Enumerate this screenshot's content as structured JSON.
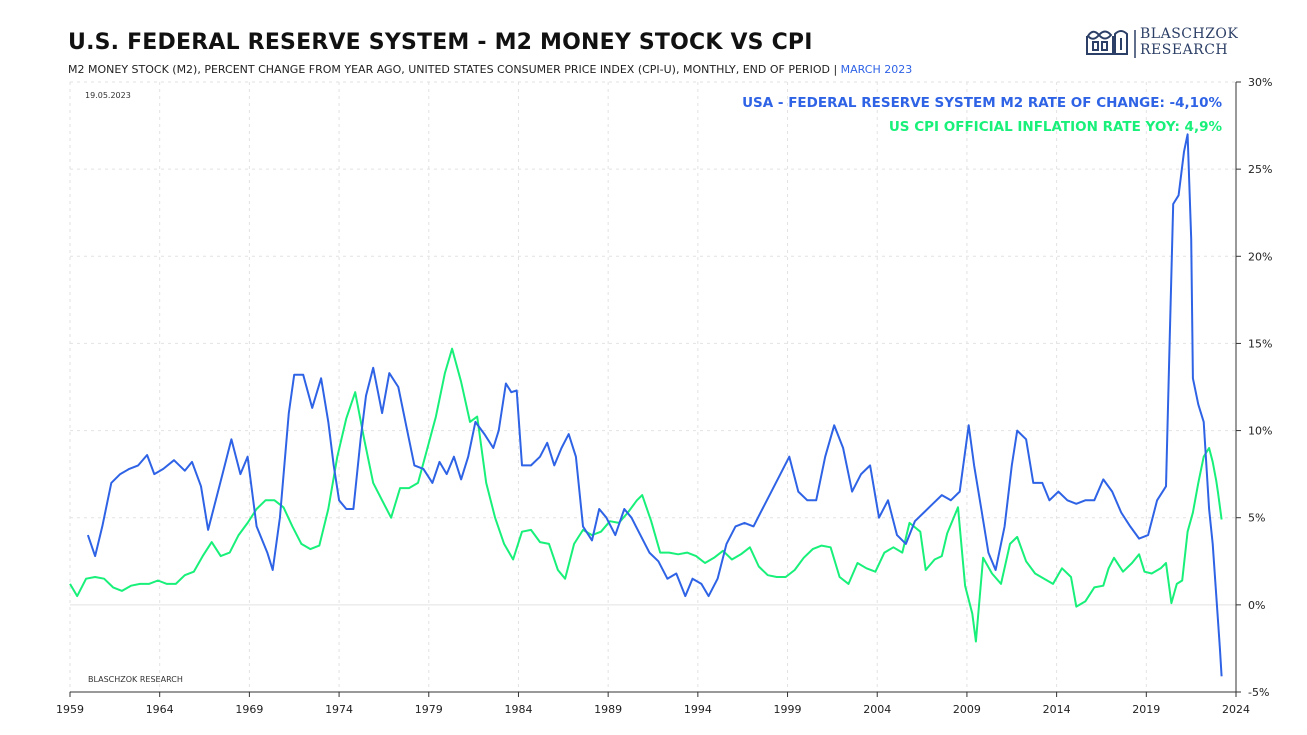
{
  "header": {
    "title": "U.S. FEDERAL RESERVE SYSTEM - M2 MONEY STOCK VS CPI",
    "subtitle": "M2 MONEY STOCK (M2), PERCENT CHANGE FROM YEAR AGO, UNITED STATES CONSUMER PRICE INDEX (CPI-U), MONTHLY, END OF PERIOD |",
    "subtitle_highlight": "MARCH 2023"
  },
  "logo": {
    "line1": "BLASCHZOK",
    "line2": "RESEARCH"
  },
  "date_stamp": "19.05.2023",
  "watermark": "BLASCHZOK  RESEARCH",
  "colors": {
    "m2": "#2f63e6",
    "cpi": "#18f07a",
    "grid": "#e2e2e2",
    "axis": "#333333"
  },
  "chart_data": {
    "type": "line",
    "title": "U.S. FEDERAL RESERVE SYSTEM - M2 MONEY STOCK VS CPI",
    "xlabel": "",
    "ylabel": "",
    "xlim": [
      1959,
      2024
    ],
    "ylim": [
      -5,
      30
    ],
    "x_ticks": [
      "1959",
      "1964",
      "1969",
      "1974",
      "1979",
      "1984",
      "1989",
      "1994",
      "1999",
      "2004",
      "2009",
      "2014",
      "2019",
      "2024"
    ],
    "y_ticks": [
      "30%",
      "25%",
      "20%",
      "15%",
      "10%",
      "5%",
      "0%",
      "-5%"
    ],
    "y_axis_side": "right",
    "grid": true,
    "legend_placement": "top-right",
    "series": [
      {
        "name": "USA - FEDERAL RESERVE SYSTEM M2 RATE OF CHANGE: -4,10%",
        "color": "#2f63e6",
        "points": [
          [
            1960.0,
            4.0
          ],
          [
            1960.4,
            2.8
          ],
          [
            1960.8,
            4.5
          ],
          [
            1961.3,
            7.0
          ],
          [
            1961.8,
            7.5
          ],
          [
            1962.3,
            7.8
          ],
          [
            1962.8,
            8.0
          ],
          [
            1963.3,
            8.6
          ],
          [
            1963.7,
            7.5
          ],
          [
            1964.2,
            7.8
          ],
          [
            1964.8,
            8.3
          ],
          [
            1965.4,
            7.7
          ],
          [
            1965.8,
            8.2
          ],
          [
            1966.3,
            6.8
          ],
          [
            1966.7,
            4.3
          ],
          [
            1967.0,
            5.5
          ],
          [
            1967.5,
            7.5
          ],
          [
            1968.0,
            9.5
          ],
          [
            1968.5,
            7.5
          ],
          [
            1968.9,
            8.5
          ],
          [
            1969.4,
            4.5
          ],
          [
            1970.0,
            3.0
          ],
          [
            1970.3,
            2.0
          ],
          [
            1970.7,
            5.0
          ],
          [
            1971.2,
            11.0
          ],
          [
            1971.5,
            13.2
          ],
          [
            1972.0,
            13.2
          ],
          [
            1972.5,
            11.3
          ],
          [
            1973.0,
            13.0
          ],
          [
            1973.4,
            10.5
          ],
          [
            1973.7,
            8.0
          ],
          [
            1974.0,
            6.0
          ],
          [
            1974.4,
            5.5
          ],
          [
            1974.8,
            5.5
          ],
          [
            1975.2,
            9.5
          ],
          [
            1975.5,
            12.0
          ],
          [
            1975.9,
            13.6
          ],
          [
            1976.4,
            11.0
          ],
          [
            1976.8,
            13.3
          ],
          [
            1977.3,
            12.5
          ],
          [
            1977.8,
            10.0
          ],
          [
            1978.2,
            8.0
          ],
          [
            1978.7,
            7.8
          ],
          [
            1979.2,
            7.0
          ],
          [
            1979.6,
            8.2
          ],
          [
            1980.0,
            7.5
          ],
          [
            1980.4,
            8.5
          ],
          [
            1980.8,
            7.2
          ],
          [
            1981.2,
            8.5
          ],
          [
            1981.6,
            10.5
          ],
          [
            1982.1,
            9.8
          ],
          [
            1982.6,
            9.0
          ],
          [
            1982.9,
            10.0
          ],
          [
            1983.3,
            12.7
          ],
          [
            1983.6,
            12.2
          ],
          [
            1983.9,
            12.3
          ],
          [
            1984.2,
            8.0
          ],
          [
            1984.7,
            8.0
          ],
          [
            1985.2,
            8.5
          ],
          [
            1985.6,
            9.3
          ],
          [
            1986.0,
            8.0
          ],
          [
            1986.4,
            9.0
          ],
          [
            1986.8,
            9.8
          ],
          [
            1987.2,
            8.5
          ],
          [
            1987.6,
            4.5
          ],
          [
            1988.1,
            3.7
          ],
          [
            1988.5,
            5.5
          ],
          [
            1988.9,
            5.0
          ],
          [
            1989.4,
            4.0
          ],
          [
            1989.9,
            5.5
          ],
          [
            1990.3,
            5.0
          ],
          [
            1990.8,
            4.0
          ],
          [
            1991.3,
            3.0
          ],
          [
            1991.8,
            2.5
          ],
          [
            1992.3,
            1.5
          ],
          [
            1992.8,
            1.8
          ],
          [
            1993.3,
            0.5
          ],
          [
            1993.7,
            1.5
          ],
          [
            1994.2,
            1.2
          ],
          [
            1994.6,
            0.5
          ],
          [
            1995.1,
            1.5
          ],
          [
            1995.6,
            3.5
          ],
          [
            1996.1,
            4.5
          ],
          [
            1996.6,
            4.7
          ],
          [
            1997.1,
            4.5
          ],
          [
            1997.6,
            5.5
          ],
          [
            1998.1,
            6.5
          ],
          [
            1998.6,
            7.5
          ],
          [
            1999.1,
            8.5
          ],
          [
            1999.6,
            6.5
          ],
          [
            2000.1,
            6.0
          ],
          [
            2000.6,
            6.0
          ],
          [
            2001.1,
            8.5
          ],
          [
            2001.6,
            10.3
          ],
          [
            2002.1,
            9.0
          ],
          [
            2002.6,
            6.5
          ],
          [
            2003.1,
            7.5
          ],
          [
            2003.6,
            8.0
          ],
          [
            2004.1,
            5.0
          ],
          [
            2004.6,
            6.0
          ],
          [
            2005.1,
            4.0
          ],
          [
            2005.6,
            3.5
          ],
          [
            2006.1,
            4.8
          ],
          [
            2006.6,
            5.3
          ],
          [
            2007.1,
            5.8
          ],
          [
            2007.6,
            6.3
          ],
          [
            2008.1,
            6.0
          ],
          [
            2008.6,
            6.5
          ],
          [
            2009.1,
            10.3
          ],
          [
            2009.4,
            8.0
          ],
          [
            2009.8,
            5.5
          ],
          [
            2010.2,
            3.0
          ],
          [
            2010.6,
            2.0
          ],
          [
            2011.1,
            4.5
          ],
          [
            2011.5,
            8.0
          ],
          [
            2011.8,
            10.0
          ],
          [
            2012.3,
            9.5
          ],
          [
            2012.7,
            7.0
          ],
          [
            2013.2,
            7.0
          ],
          [
            2013.6,
            6.0
          ],
          [
            2014.1,
            6.5
          ],
          [
            2014.6,
            6.0
          ],
          [
            2015.1,
            5.8
          ],
          [
            2015.6,
            6.0
          ],
          [
            2016.1,
            6.0
          ],
          [
            2016.6,
            7.2
          ],
          [
            2017.1,
            6.5
          ],
          [
            2017.6,
            5.3
          ],
          [
            2018.1,
            4.5
          ],
          [
            2018.6,
            3.8
          ],
          [
            2019.1,
            4.0
          ],
          [
            2019.6,
            6.0
          ],
          [
            2020.1,
            6.8
          ],
          [
            2020.3,
            15.0
          ],
          [
            2020.5,
            23.0
          ],
          [
            2020.8,
            23.5
          ],
          [
            2021.1,
            26.0
          ],
          [
            2021.3,
            27.0
          ],
          [
            2021.5,
            21.0
          ],
          [
            2021.6,
            13.0
          ],
          [
            2021.9,
            11.5
          ],
          [
            2022.2,
            10.5
          ],
          [
            2022.5,
            5.5
          ],
          [
            2022.7,
            3.5
          ],
          [
            2022.9,
            0.5
          ],
          [
            2023.1,
            -2.5
          ],
          [
            2023.2,
            -4.1
          ]
        ]
      },
      {
        "name": "US CPI OFFICIAL INFLATION RATE YOY: 4,9%",
        "color": "#18f07a",
        "points": [
          [
            1959.0,
            1.2
          ],
          [
            1959.4,
            0.5
          ],
          [
            1959.9,
            1.5
          ],
          [
            1960.4,
            1.6
          ],
          [
            1960.9,
            1.5
          ],
          [
            1961.4,
            1.0
          ],
          [
            1961.9,
            0.8
          ],
          [
            1962.4,
            1.1
          ],
          [
            1962.9,
            1.2
          ],
          [
            1963.4,
            1.2
          ],
          [
            1963.9,
            1.4
          ],
          [
            1964.4,
            1.2
          ],
          [
            1964.9,
            1.2
          ],
          [
            1965.4,
            1.7
          ],
          [
            1965.9,
            1.9
          ],
          [
            1966.4,
            2.8
          ],
          [
            1966.9,
            3.6
          ],
          [
            1967.4,
            2.8
          ],
          [
            1967.9,
            3.0
          ],
          [
            1968.4,
            4.0
          ],
          [
            1968.9,
            4.7
          ],
          [
            1969.4,
            5.5
          ],
          [
            1969.9,
            6.0
          ],
          [
            1970.4,
            6.0
          ],
          [
            1970.9,
            5.6
          ],
          [
            1971.4,
            4.5
          ],
          [
            1971.9,
            3.5
          ],
          [
            1972.4,
            3.2
          ],
          [
            1972.9,
            3.4
          ],
          [
            1973.4,
            5.5
          ],
          [
            1973.9,
            8.5
          ],
          [
            1974.4,
            10.7
          ],
          [
            1974.9,
            12.2
          ],
          [
            1975.4,
            9.5
          ],
          [
            1975.9,
            7.0
          ],
          [
            1976.4,
            6.0
          ],
          [
            1976.9,
            5.0
          ],
          [
            1977.4,
            6.7
          ],
          [
            1977.9,
            6.7
          ],
          [
            1978.4,
            7.0
          ],
          [
            1978.9,
            8.9
          ],
          [
            1979.4,
            10.8
          ],
          [
            1979.9,
            13.3
          ],
          [
            1980.3,
            14.7
          ],
          [
            1980.8,
            12.8
          ],
          [
            1981.3,
            10.5
          ],
          [
            1981.7,
            10.8
          ],
          [
            1982.2,
            7.0
          ],
          [
            1982.7,
            5.0
          ],
          [
            1983.2,
            3.5
          ],
          [
            1983.7,
            2.6
          ],
          [
            1984.2,
            4.2
          ],
          [
            1984.7,
            4.3
          ],
          [
            1985.2,
            3.6
          ],
          [
            1985.7,
            3.5
          ],
          [
            1986.2,
            2.0
          ],
          [
            1986.6,
            1.5
          ],
          [
            1987.1,
            3.5
          ],
          [
            1987.6,
            4.3
          ],
          [
            1988.1,
            4.0
          ],
          [
            1988.6,
            4.2
          ],
          [
            1989.1,
            4.8
          ],
          [
            1989.6,
            4.7
          ],
          [
            1990.1,
            5.3
          ],
          [
            1990.6,
            6.0
          ],
          [
            1990.9,
            6.3
          ],
          [
            1991.4,
            4.8
          ],
          [
            1991.9,
            3.0
          ],
          [
            1992.4,
            3.0
          ],
          [
            1992.9,
            2.9
          ],
          [
            1993.4,
            3.0
          ],
          [
            1993.9,
            2.8
          ],
          [
            1994.4,
            2.4
          ],
          [
            1994.9,
            2.7
          ],
          [
            1995.4,
            3.1
          ],
          [
            1995.9,
            2.6
          ],
          [
            1996.4,
            2.9
          ],
          [
            1996.9,
            3.3
          ],
          [
            1997.4,
            2.2
          ],
          [
            1997.9,
            1.7
          ],
          [
            1998.4,
            1.6
          ],
          [
            1998.9,
            1.6
          ],
          [
            1999.4,
            2.0
          ],
          [
            1999.9,
            2.7
          ],
          [
            2000.4,
            3.2
          ],
          [
            2000.9,
            3.4
          ],
          [
            2001.4,
            3.3
          ],
          [
            2001.9,
            1.6
          ],
          [
            2002.4,
            1.2
          ],
          [
            2002.9,
            2.4
          ],
          [
            2003.4,
            2.1
          ],
          [
            2003.9,
            1.9
          ],
          [
            2004.4,
            3.0
          ],
          [
            2004.9,
            3.3
          ],
          [
            2005.4,
            3.0
          ],
          [
            2005.8,
            4.7
          ],
          [
            2006.4,
            4.2
          ],
          [
            2006.7,
            2.0
          ],
          [
            2007.2,
            2.6
          ],
          [
            2007.6,
            2.8
          ],
          [
            2007.9,
            4.1
          ],
          [
            2008.5,
            5.6
          ],
          [
            2008.9,
            1.1
          ],
          [
            2009.3,
            -0.5
          ],
          [
            2009.5,
            -2.1
          ],
          [
            2009.9,
            2.7
          ],
          [
            2010.4,
            1.8
          ],
          [
            2010.9,
            1.2
          ],
          [
            2011.4,
            3.5
          ],
          [
            2011.8,
            3.9
          ],
          [
            2012.3,
            2.5
          ],
          [
            2012.8,
            1.8
          ],
          [
            2013.3,
            1.5
          ],
          [
            2013.8,
            1.2
          ],
          [
            2014.3,
            2.1
          ],
          [
            2014.8,
            1.6
          ],
          [
            2015.1,
            -0.1
          ],
          [
            2015.6,
            0.2
          ],
          [
            2016.1,
            1.0
          ],
          [
            2016.6,
            1.1
          ],
          [
            2016.9,
            2.1
          ],
          [
            2017.2,
            2.7
          ],
          [
            2017.7,
            1.9
          ],
          [
            2018.2,
            2.4
          ],
          [
            2018.6,
            2.9
          ],
          [
            2018.9,
            1.9
          ],
          [
            2019.3,
            1.8
          ],
          [
            2019.8,
            2.1
          ],
          [
            2020.1,
            2.4
          ],
          [
            2020.4,
            0.1
          ],
          [
            2020.7,
            1.2
          ],
          [
            2021.0,
            1.4
          ],
          [
            2021.3,
            4.2
          ],
          [
            2021.6,
            5.3
          ],
          [
            2021.9,
            7.0
          ],
          [
            2022.2,
            8.5
          ],
          [
            2022.5,
            9.0
          ],
          [
            2022.7,
            8.2
          ],
          [
            2022.9,
            7.1
          ],
          [
            2023.0,
            6.4
          ],
          [
            2023.2,
            4.9
          ]
        ]
      }
    ]
  }
}
